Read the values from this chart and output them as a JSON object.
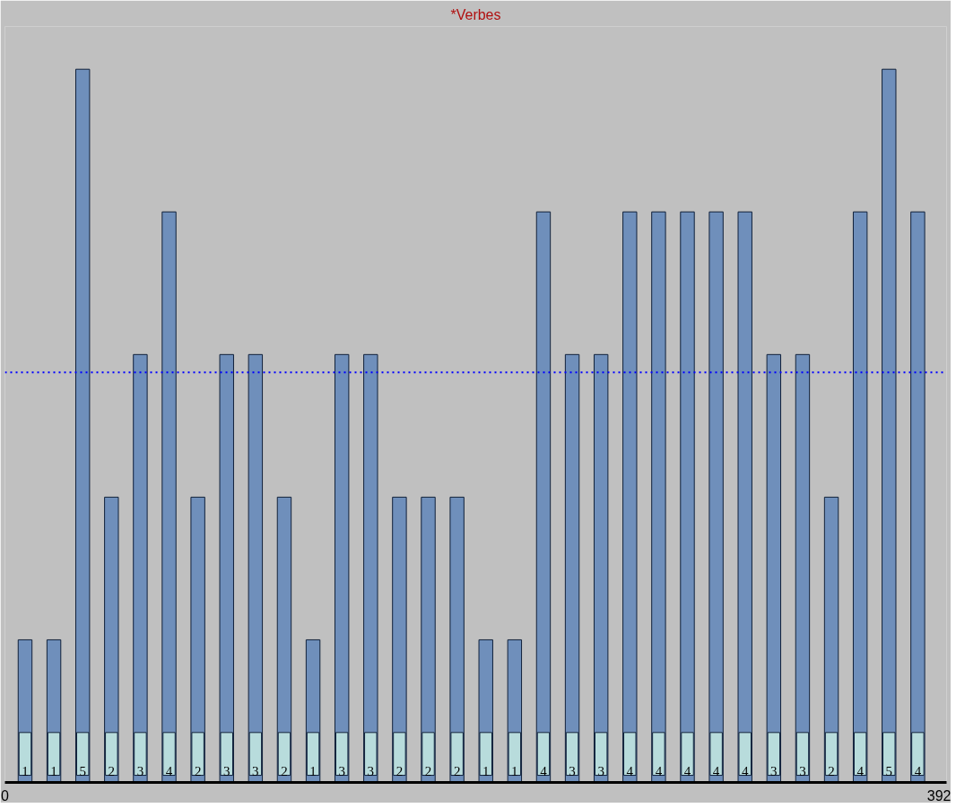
{
  "chart_data": {
    "type": "bar",
    "title": "*Verbes",
    "categories": [
      null,
      null,
      null,
      null,
      null,
      null,
      null,
      null,
      null,
      null,
      null,
      null,
      null,
      null,
      null,
      null,
      null,
      null,
      null,
      null,
      null,
      null,
      null,
      null,
      null,
      null,
      null,
      null,
      null,
      null,
      null,
      null
    ],
    "values": [
      1,
      1,
      5,
      2,
      3,
      4,
      2,
      3,
      3,
      2,
      1,
      3,
      3,
      2,
      2,
      2,
      1,
      1,
      4,
      3,
      3,
      4,
      4,
      4,
      4,
      4,
      3,
      3,
      2,
      4,
      5,
      4
    ],
    "color": "#6f8fbb",
    "data_labels": true,
    "ylim": [
      0,
      5.3
    ],
    "tick_labels": "x",
    "x2lim": [
      0,
      392
    ],
    "x2ticks": [
      0,
      392
    ],
    "ref_lines": [
      {
        "axis": "y",
        "value": 2.875,
        "label": null,
        "color": "#0000ff",
        "line_style": "dotted"
      }
    ],
    "grid": false
  }
}
